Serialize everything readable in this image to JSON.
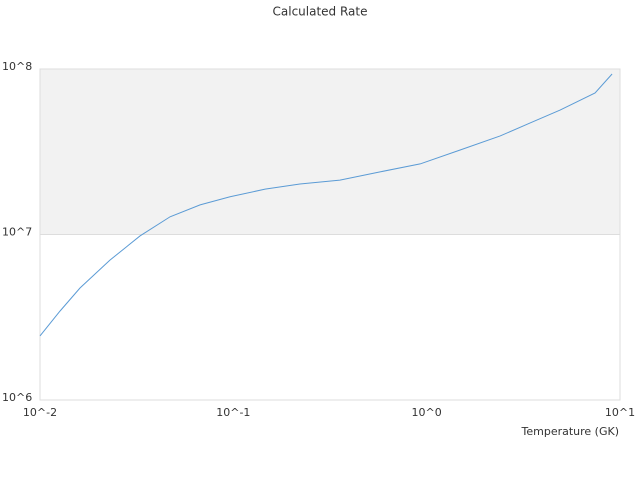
{
  "chart_data": {
    "type": "line",
    "title": "Calculated Rate",
    "x_label": "Temperature (GK)",
    "x_log": true,
    "y_log": true,
    "grid": true,
    "x": [
      0.01,
      0.0127,
      0.0161,
      0.023,
      0.0329,
      0.0471,
      0.0673,
      0.0962,
      0.146,
      0.221,
      0.356,
      0.574,
      0.925,
      1.49,
      2.4,
      3.43,
      4.9,
      7.43,
      9.1
    ],
    "series": [
      {
        "color": "#5b9bd5",
        "values": [
          2440000,
          3450000,
          4750000,
          7000000,
          9800000,
          12800000,
          15100000,
          16900000,
          18800000,
          20200000,
          21300000,
          23900000,
          26700000,
          32400000,
          39400000,
          47200000,
          56500000,
          71600000,
          93300000
        ]
      }
    ],
    "xlim": [
      0.01,
      10
    ],
    "xticks": [
      {
        "value": 0.01,
        "label": "10^-2"
      },
      {
        "value": 0.1,
        "label": "10^-1"
      },
      {
        "value": 1,
        "label": "10^0"
      },
      {
        "value": 10,
        "label": "10^1"
      }
    ],
    "ylim": [
      1000000,
      100000000
    ],
    "yticks": [
      {
        "value": 1000000,
        "label": "10^6"
      },
      {
        "value": 10000000,
        "label": "10^7"
      },
      {
        "value": 100000000,
        "label": "10^8"
      }
    ]
  }
}
